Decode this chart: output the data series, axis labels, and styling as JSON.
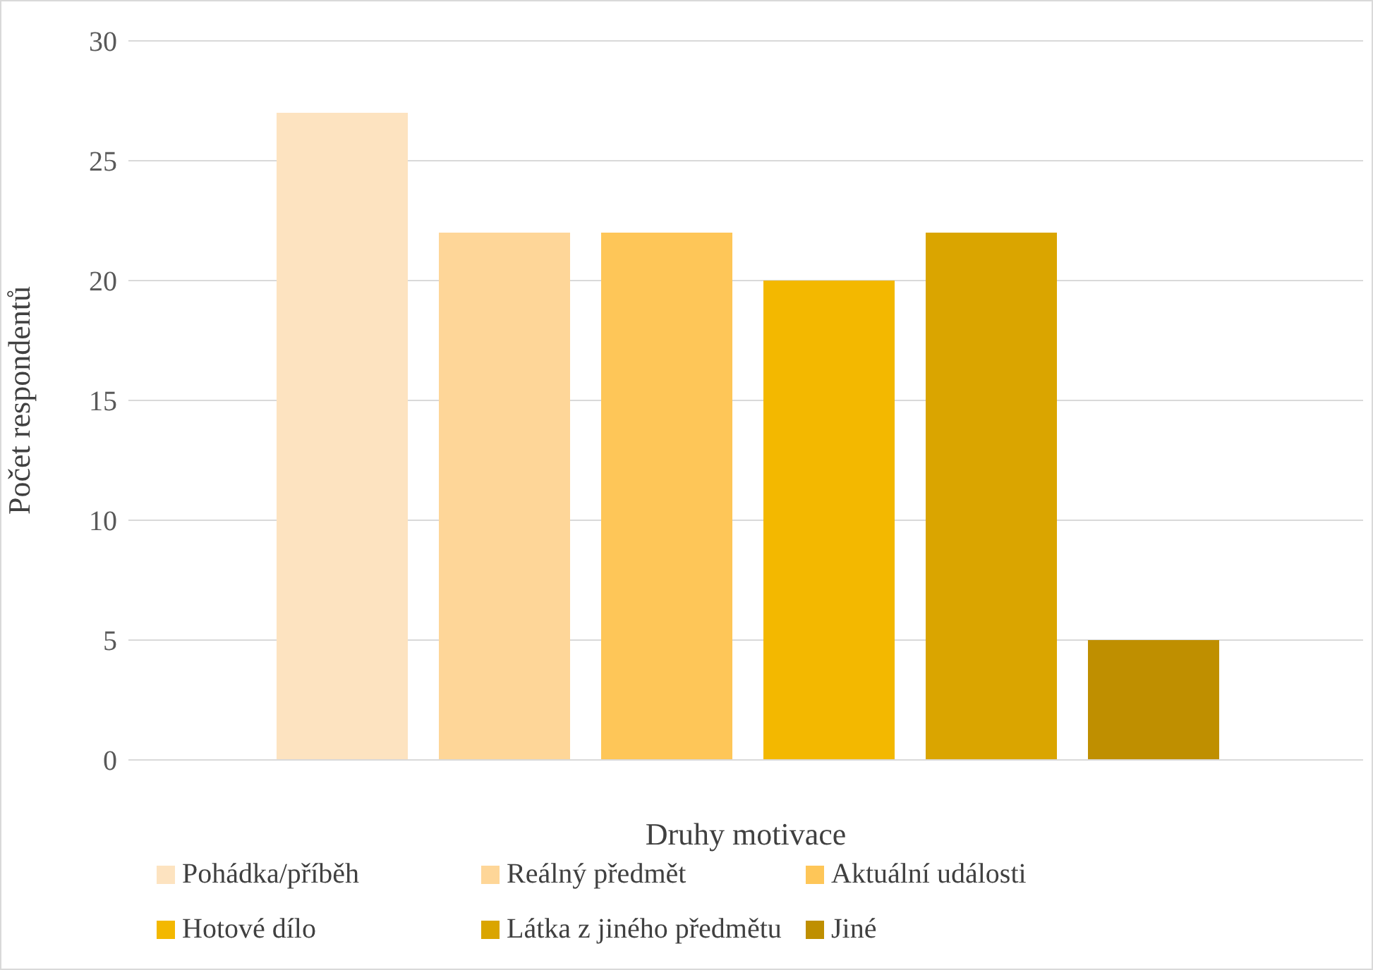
{
  "chart_data": {
    "type": "bar",
    "xlabel": "Druhy motivace",
    "ylabel": "Počet respondentů",
    "categories": [
      null
    ],
    "series": [
      {
        "name": "Pohádka/příběh",
        "color": "#fde3c0",
        "values": [
          27
        ]
      },
      {
        "name": "Reálný předmět",
        "color": "#fed698",
        "values": [
          22
        ]
      },
      {
        "name": "Aktuální události",
        "color": "#fec658",
        "values": [
          22
        ]
      },
      {
        "name": "Hotové dílo",
        "color": "#f3b800",
        "values": [
          20
        ]
      },
      {
        "name": "Látka z jiného předmětu",
        "color": "#daa500",
        "values": [
          22
        ]
      },
      {
        "name": "Jiné",
        "color": "#bf8f00",
        "values": [
          5
        ]
      }
    ],
    "ylim": [
      0,
      30
    ],
    "yticks": [
      0,
      5,
      10,
      15,
      20,
      25,
      30
    ],
    "grid": "y",
    "legend": "bottom"
  }
}
